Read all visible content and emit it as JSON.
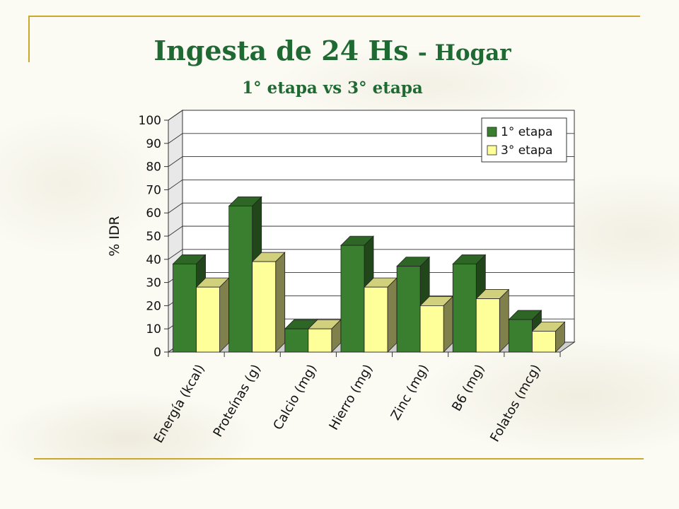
{
  "slide": {
    "title_main": "Ingesta de 24 Hs",
    "title_suffix": "- Hogar",
    "subtitle": "1° etapa vs 3° etapa"
  },
  "colors": {
    "series1": "#3a7f2f",
    "series2": "#ffff99",
    "title": "#1f6a33",
    "rule": "#c9a82c"
  },
  "chart_data": {
    "type": "bar",
    "categories": [
      "Energía (kcal)",
      "Proteínas (g)",
      "Calcio (mg)",
      "Hierro (mg)",
      "Zinc (mg)",
      "B6 (mg)",
      "Folatos (mcg)"
    ],
    "series": [
      {
        "name": "1° etapa",
        "values": [
          38,
          63,
          10,
          46,
          37,
          38,
          14
        ]
      },
      {
        "name": "3° etapa",
        "values": [
          28,
          39,
          10,
          28,
          20,
          23,
          9
        ]
      }
    ],
    "ylabel": "% IDR",
    "xlabel": "",
    "ylim": [
      0,
      100
    ],
    "yticks": [
      0,
      10,
      20,
      30,
      40,
      50,
      60,
      70,
      80,
      90,
      100
    ],
    "grid": true,
    "legend": "top-right",
    "style": "3d"
  }
}
